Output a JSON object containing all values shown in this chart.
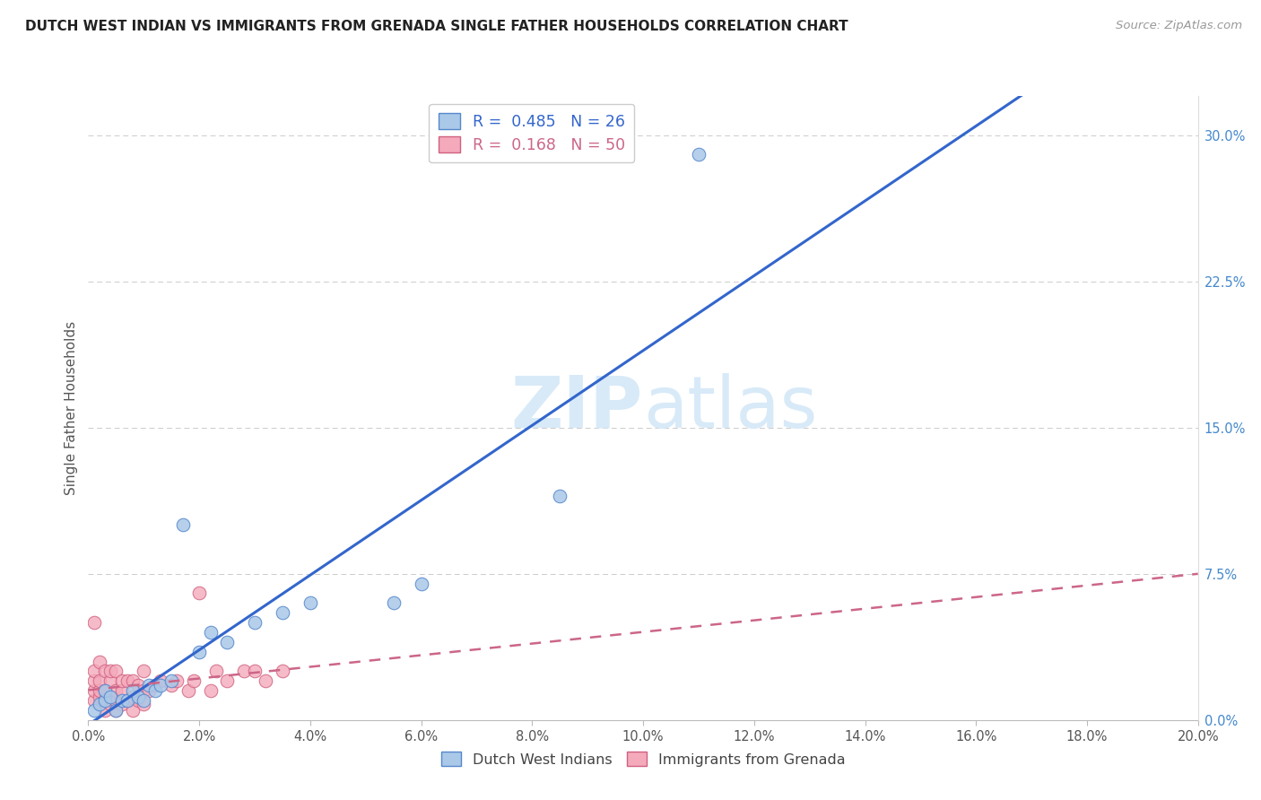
{
  "title": "DUTCH WEST INDIAN VS IMMIGRANTS FROM GRENADA SINGLE FATHER HOUSEHOLDS CORRELATION CHART",
  "source": "Source: ZipAtlas.com",
  "ylabel": "Single Father Households",
  "r_blue": 0.485,
  "n_blue": 26,
  "r_pink": 0.168,
  "n_pink": 50,
  "xlim": [
    0.0,
    0.2
  ],
  "ylim": [
    0.0,
    0.32
  ],
  "xticks": [
    0.0,
    0.02,
    0.04,
    0.06,
    0.08,
    0.1,
    0.12,
    0.14,
    0.16,
    0.18,
    0.2
  ],
  "yticks_right": [
    0.0,
    0.075,
    0.15,
    0.225,
    0.3
  ],
  "blue_scatter_color": "#aac8e8",
  "blue_edge_color": "#5588cc",
  "pink_scatter_color": "#f4aabb",
  "pink_edge_color": "#d06080",
  "blue_line_color": "#3366cc",
  "pink_line_color": "#cc6688",
  "right_tick_color": "#4488cc",
  "watermark_color": "#d8eaf8",
  "legend_label_blue": "Dutch West Indians",
  "legend_label_pink": "Immigrants from Grenada",
  "blue_x": [
    0.001,
    0.002,
    0.003,
    0.003,
    0.004,
    0.005,
    0.006,
    0.007,
    0.008,
    0.009,
    0.01,
    0.011,
    0.012,
    0.013,
    0.015,
    0.017,
    0.02,
    0.022,
    0.025,
    0.03,
    0.035,
    0.04,
    0.055,
    0.06,
    0.085,
    0.11
  ],
  "blue_y": [
    0.005,
    0.008,
    0.01,
    0.015,
    0.012,
    0.005,
    0.01,
    0.01,
    0.015,
    0.012,
    0.01,
    0.018,
    0.015,
    0.018,
    0.02,
    0.1,
    0.035,
    0.045,
    0.04,
    0.05,
    0.055,
    0.06,
    0.06,
    0.07,
    0.115,
    0.29
  ],
  "pink_x": [
    0.001,
    0.001,
    0.001,
    0.001,
    0.001,
    0.002,
    0.002,
    0.002,
    0.002,
    0.002,
    0.003,
    0.003,
    0.003,
    0.003,
    0.004,
    0.004,
    0.004,
    0.004,
    0.005,
    0.005,
    0.005,
    0.005,
    0.006,
    0.006,
    0.006,
    0.007,
    0.007,
    0.008,
    0.008,
    0.008,
    0.009,
    0.009,
    0.01,
    0.01,
    0.01,
    0.011,
    0.012,
    0.013,
    0.015,
    0.016,
    0.018,
    0.019,
    0.02,
    0.022,
    0.023,
    0.025,
    0.028,
    0.03,
    0.032,
    0.035
  ],
  "pink_y": [
    0.01,
    0.015,
    0.02,
    0.025,
    0.05,
    0.008,
    0.012,
    0.015,
    0.02,
    0.03,
    0.005,
    0.01,
    0.015,
    0.025,
    0.008,
    0.012,
    0.02,
    0.025,
    0.005,
    0.01,
    0.015,
    0.025,
    0.008,
    0.015,
    0.02,
    0.01,
    0.02,
    0.005,
    0.012,
    0.02,
    0.01,
    0.018,
    0.008,
    0.015,
    0.025,
    0.015,
    0.018,
    0.02,
    0.018,
    0.02,
    0.015,
    0.02,
    0.065,
    0.015,
    0.025,
    0.02,
    0.025,
    0.025,
    0.02,
    0.025
  ]
}
